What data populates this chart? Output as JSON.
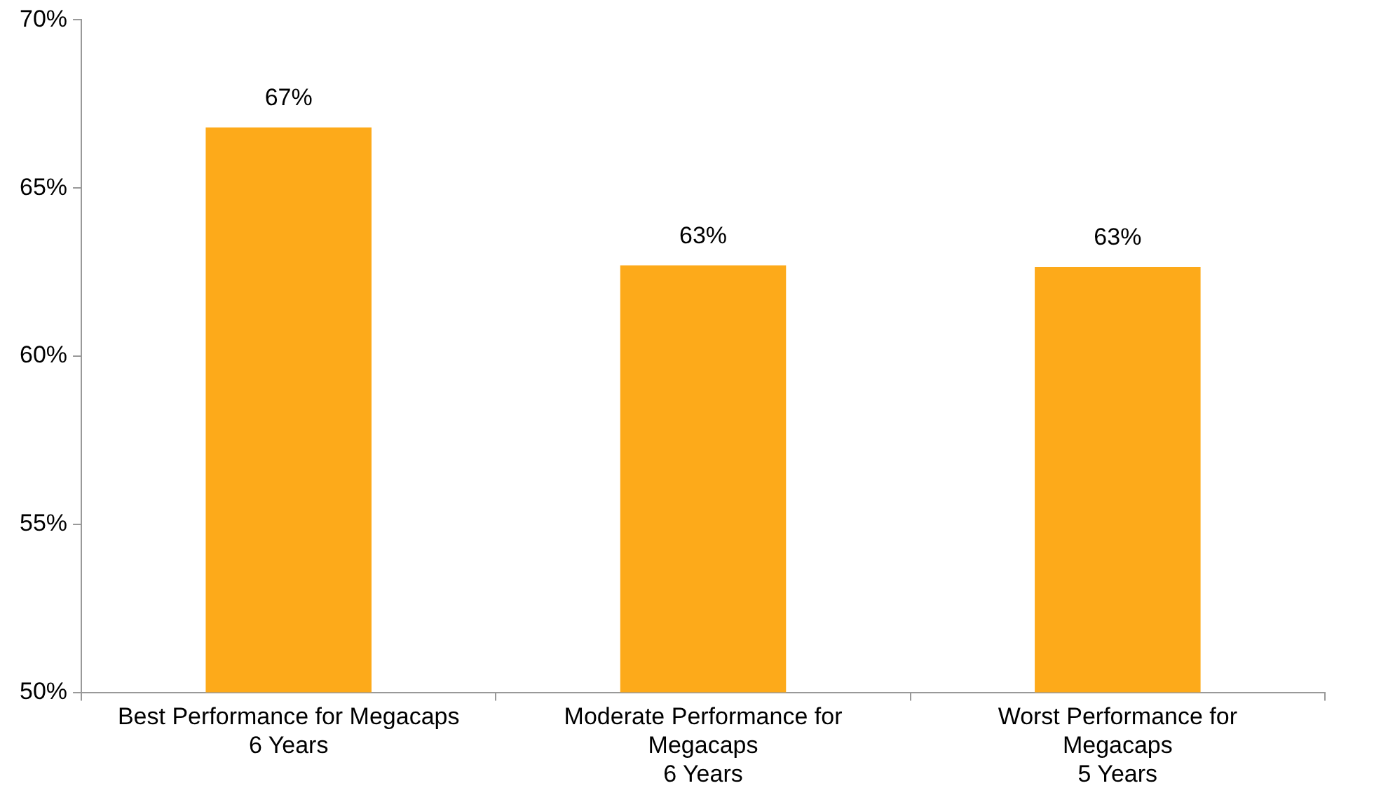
{
  "chart_data": {
    "type": "bar",
    "categories": [
      "Best Performance for Megacaps\n6 Years",
      "Moderate Performance for\nMegacaps\n6 Years",
      "Worst Performance for\nMegacaps\n5 Years"
    ],
    "values": [
      66.8,
      62.7,
      62.65
    ],
    "value_labels": [
      "67%",
      "63%",
      "63%"
    ],
    "color": "#fdaa1a",
    "ylim": [
      50,
      70
    ],
    "yticks": [
      {
        "value": 50,
        "label": "50%"
      },
      {
        "value": 55,
        "label": "55%"
      },
      {
        "value": 60,
        "label": "60%"
      },
      {
        "value": 65,
        "label": "65%"
      },
      {
        "value": 70,
        "label": "70%"
      }
    ],
    "grid": false,
    "legend": false
  }
}
